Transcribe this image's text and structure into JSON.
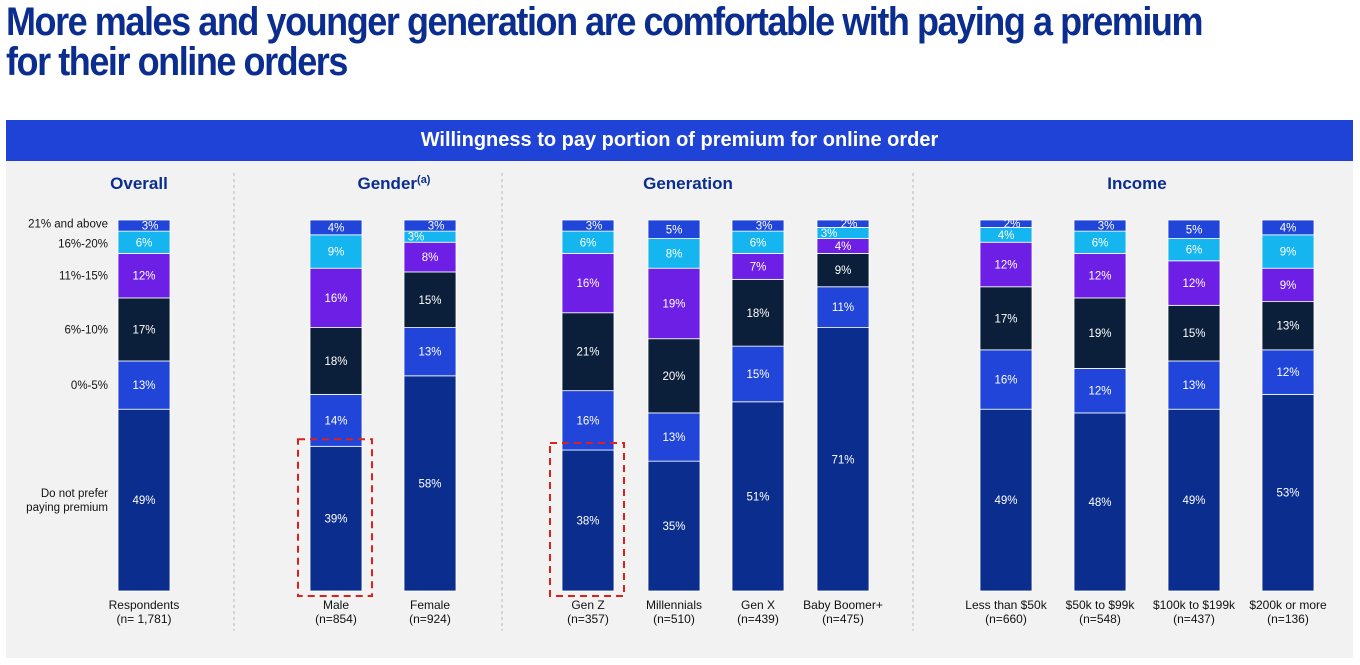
{
  "title": "More males and younger generation are comfortable with paying a premium for their online orders",
  "banner": "Willingness to pay portion of premium for online order",
  "colors": {
    "Do not prefer paying premium": "#0b2e8e",
    "0%-5%": "#2045d8",
    "6%-10%": "#0b1f3a",
    "11%-15%": "#6d1fe6",
    "16%-20%": "#15b6f0",
    "21% and above": "#2045d8"
  },
  "chart_data": {
    "type": "bar",
    "stacked": true,
    "normalized_100": true,
    "legend_placement": "left, labels beside the Overall bar",
    "series_order_bottom_to_top": [
      "Do not prefer paying premium",
      "0%-5%",
      "6%-10%",
      "11%-15%",
      "16%-20%",
      "21% and above"
    ],
    "series_labels": [
      "21% and above",
      "16%-20%",
      "11%-15%",
      "6%-10%",
      "0%-5%",
      "Do not prefer\npaying premium"
    ],
    "groups": [
      {
        "name": "Overall",
        "sup": "",
        "bars": [
          {
            "label": "Respondents",
            "n": "(n= 1,781)",
            "values": [
              49,
              13,
              17,
              12,
              6,
              3
            ]
          }
        ]
      },
      {
        "name": "Gender",
        "sup": "(a)",
        "bars": [
          {
            "label": "Male",
            "n": "(n=854)",
            "values": [
              39,
              14,
              18,
              16,
              9,
              4
            ],
            "highlight": true
          },
          {
            "label": "Female",
            "n": "(n=924)",
            "values": [
              58,
              13,
              15,
              8,
              3,
              3
            ]
          }
        ]
      },
      {
        "name": "Generation",
        "sup": "",
        "bars": [
          {
            "label": "Gen Z",
            "n": "(n=357)",
            "values": [
              38,
              16,
              21,
              16,
              6,
              3
            ],
            "highlight": true
          },
          {
            "label": "Millennials",
            "n": "(n=510)",
            "values": [
              35,
              13,
              20,
              19,
              8,
              5
            ]
          },
          {
            "label": "Gen X",
            "n": "(n=439)",
            "values": [
              51,
              15,
              18,
              7,
              6,
              3
            ]
          },
          {
            "label": "Baby Boomer+",
            "n": "(n=475)",
            "values": [
              71,
              11,
              9,
              4,
              3,
              2
            ]
          }
        ]
      },
      {
        "name": "Income",
        "sup": "",
        "bars": [
          {
            "label": "Less than $50k",
            "n": "(n=660)",
            "values": [
              49,
              16,
              17,
              12,
              4,
              2
            ]
          },
          {
            "label": "$50k to $99k",
            "n": "(n=548)",
            "values": [
              48,
              12,
              19,
              12,
              6,
              3
            ]
          },
          {
            "label": "$100k to $199k",
            "n": "(n=437)",
            "values": [
              49,
              13,
              15,
              12,
              6,
              5
            ]
          },
          {
            "label": "$200k or more",
            "n": "(n=136)",
            "values": [
              53,
              12,
              13,
              9,
              9,
              4
            ]
          }
        ]
      }
    ]
  }
}
